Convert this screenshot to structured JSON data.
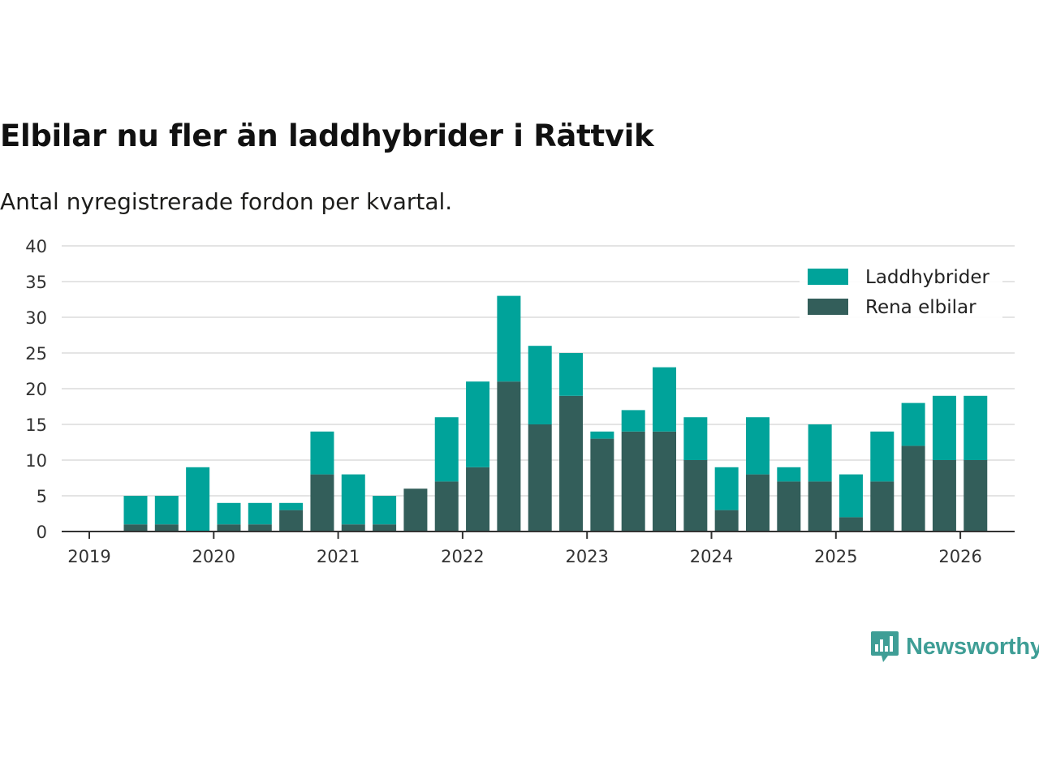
{
  "chart_data": {
    "type": "bar",
    "stacked": true,
    "title": "Elbilar nu fler än laddhybrider i Rättvik",
    "subtitle": "Antal nyregistrerade fordon per kvartal.",
    "xlabel": "",
    "ylabel": "",
    "ylim": [
      0,
      40
    ],
    "yticks": [
      "0",
      "5",
      "10",
      "15",
      "20",
      "25",
      "30",
      "35",
      "40"
    ],
    "xticks": [
      "2019",
      "2020",
      "2021",
      "2022",
      "2023",
      "2024",
      "2025",
      "2026"
    ],
    "categories": [
      "2019 Q2",
      "2019 Q3",
      "2019 Q4",
      "2020 Q1",
      "2020 Q2",
      "2020 Q3",
      "2020 Q4",
      "2021 Q1",
      "2021 Q2",
      "2021 Q3",
      "2021 Q4",
      "2022 Q1",
      "2022 Q2",
      "2022 Q3",
      "2022 Q4",
      "2023 Q1",
      "2023 Q2",
      "2023 Q3",
      "2023 Q4",
      "2024 Q1",
      "2024 Q2",
      "2024 Q3",
      "2024 Q4",
      "2025 Q1",
      "2025 Q2",
      "2025 Q3",
      "2025 Q4",
      "2026 Q1"
    ],
    "series": [
      {
        "name": "Rena elbilar",
        "color": "#335e5a",
        "values": [
          1,
          1,
          0,
          1,
          1,
          3,
          8,
          1,
          1,
          6,
          7,
          9,
          21,
          15,
          19,
          13,
          14,
          14,
          10,
          3,
          8,
          7,
          7,
          2,
          7,
          12,
          10,
          10
        ]
      },
      {
        "name": "Laddhybrider",
        "color": "#00a39a",
        "values": [
          4,
          4,
          9,
          3,
          3,
          1,
          6,
          7,
          4,
          0,
          9,
          12,
          12,
          11,
          6,
          1,
          3,
          9,
          6,
          6,
          8,
          2,
          8,
          6,
          7,
          6,
          9,
          9
        ]
      }
    ],
    "legend": {
      "position": "top-right",
      "entries": [
        "Laddhybrider",
        "Rena elbilar"
      ]
    },
    "grid": true
  },
  "brand": {
    "name": "Newsworthy",
    "color": "#3f9e96",
    "icon": "bar-chart-speech-bubble-icon"
  }
}
